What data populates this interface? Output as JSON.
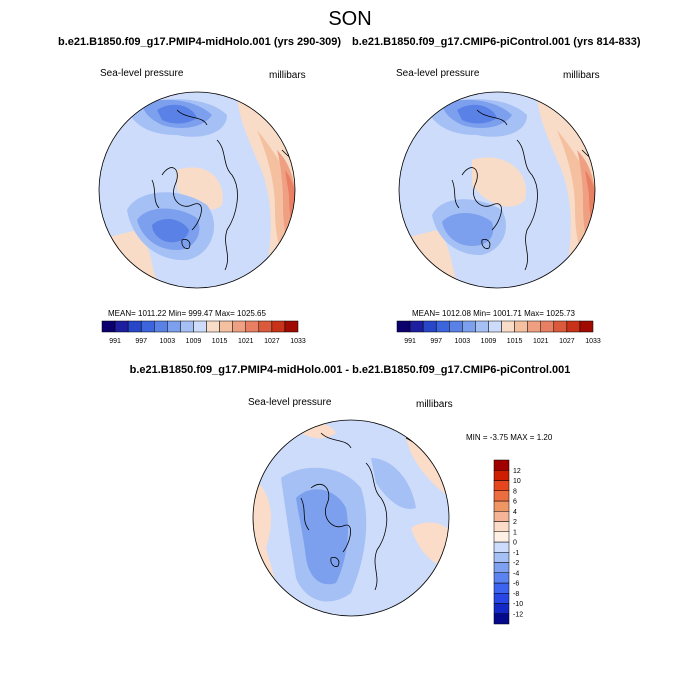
{
  "season": "SON",
  "panels": [
    {
      "title": "b.e21.B1850.f09_g17.PMIP4-midHolo.001 (yrs 290-309)",
      "variable": "Sea-level pressure",
      "units": "millibars",
      "stats": "MEAN= 1011.22  Min= 999.47  Max= 1025.65"
    },
    {
      "title": "b.e21.B1850.f09_g17.CMIP6-piControl.001 (yrs 814-833)",
      "variable": "Sea-level pressure",
      "units": "millibars",
      "stats": "MEAN= 1012.08  Min= 1001.71  Max= 1025.73"
    }
  ],
  "diff_panel": {
    "title": "b.e21.B1850.f09_g17.PMIP4-midHolo.001 - b.e21.B1850.f09_g17.CMIP6-piControl.001",
    "variable": "Sea-level pressure",
    "units": "millibars",
    "stats": "MIN = -3.75 MAX =  1.20"
  },
  "colorbar_abs": {
    "colors": [
      "#0b006e",
      "#1e1ea0",
      "#2846c8",
      "#3c64dc",
      "#5a82e6",
      "#7da0ee",
      "#a5c0f5",
      "#cddcfa",
      "#f8dcc8",
      "#f5c0a0",
      "#f0a082",
      "#e87f62",
      "#dc5a3c",
      "#c83218",
      "#a00a00"
    ],
    "labels": [
      "991",
      "997",
      "1003",
      "1009",
      "1015",
      "1021",
      "1027",
      "1033"
    ]
  },
  "colorbar_diff": {
    "colors": [
      "#050a8c",
      "#1428c8",
      "#2846e6",
      "#3c64f0",
      "#5a82f0",
      "#7da0f0",
      "#a5c0f5",
      "#cddcfa",
      "#fff0e6",
      "#fadcc8",
      "#f5b496",
      "#f09664",
      "#eb6e41",
      "#e6461e",
      "#cd1e00",
      "#a00000"
    ],
    "labels": [
      "-12",
      "-10",
      "-8",
      "-6",
      "-4",
      "-2",
      "-1",
      "0",
      "1",
      "2",
      "4",
      "6",
      "8",
      "10",
      "12"
    ]
  }
}
